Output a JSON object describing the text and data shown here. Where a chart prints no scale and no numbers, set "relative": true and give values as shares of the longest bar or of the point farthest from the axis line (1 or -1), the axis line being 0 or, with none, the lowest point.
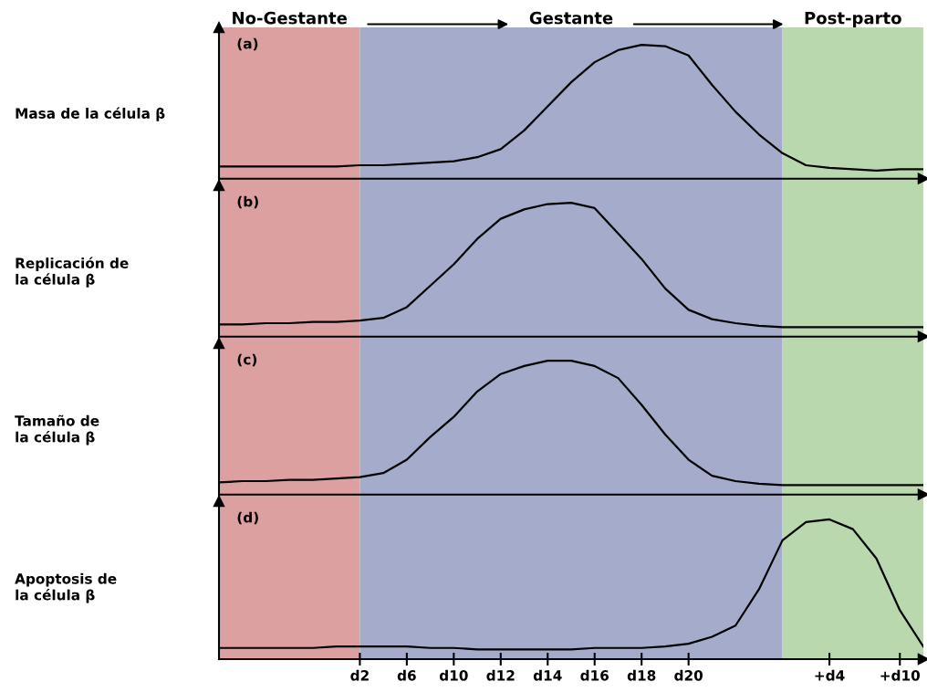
{
  "chart_data": [
    {
      "type": "line",
      "title": "(a)",
      "ylabel": "Masa de la célula β",
      "relative": true,
      "tick_labels": false,
      "grid": false,
      "categories": [
        null,
        null,
        null,
        null,
        null,
        null,
        null,
        null,
        null,
        null,
        null,
        null,
        null,
        null,
        null,
        null,
        null,
        null,
        null,
        null,
        null,
        null,
        null,
        null,
        null,
        null,
        null,
        null,
        null,
        null,
        null
      ],
      "annotations": [
        "No-Gestante",
        "Gestante",
        "Post-parto"
      ],
      "series": [
        {
          "color": "#000000",
          "values": [
            0.09,
            0.09,
            0.09,
            0.09,
            0.09,
            0.09,
            0.1,
            0.1,
            0.11,
            0.12,
            0.13,
            0.16,
            0.22,
            0.36,
            0.54,
            0.72,
            0.87,
            0.96,
            1.0,
            0.99,
            0.92,
            0.7,
            0.5,
            0.33,
            0.19,
            0.1,
            0.08,
            0.07,
            0.06,
            0.07,
            0.07
          ]
        }
      ]
    },
    {
      "type": "line",
      "title": "(b)",
      "ylabel": "Replicación de\nla célula β",
      "relative": true,
      "tick_labels": false,
      "grid": false,
      "categories": [
        null,
        null,
        null,
        null,
        null,
        null,
        null,
        null,
        null,
        null,
        null,
        null,
        null,
        null,
        null,
        null,
        null,
        null,
        null,
        null,
        null,
        null,
        null,
        null,
        null,
        null,
        null,
        null,
        null,
        null,
        null
      ],
      "series": [
        {
          "color": "#000000",
          "values": [
            0.09,
            0.09,
            0.1,
            0.1,
            0.11,
            0.11,
            0.12,
            0.14,
            0.22,
            0.38,
            0.54,
            0.73,
            0.88,
            0.95,
            0.99,
            1.0,
            0.96,
            0.77,
            0.58,
            0.36,
            0.2,
            0.13,
            0.1,
            0.08,
            0.07,
            0.07,
            0.07,
            0.07,
            0.07,
            0.07,
            0.07
          ]
        }
      ]
    },
    {
      "type": "line",
      "title": "(c)",
      "ylabel": "Tamaño de\nla célula β",
      "relative": true,
      "tick_labels": false,
      "grid": false,
      "categories": [
        null,
        null,
        null,
        null,
        null,
        null,
        null,
        null,
        null,
        null,
        null,
        null,
        null,
        null,
        null,
        null,
        null,
        null,
        null,
        null,
        null,
        null,
        null,
        null,
        null,
        null,
        null,
        null,
        null,
        null,
        null
      ],
      "series": [
        {
          "color": "#000000",
          "values": [
            0.09,
            0.1,
            0.1,
            0.11,
            0.11,
            0.12,
            0.13,
            0.16,
            0.26,
            0.43,
            0.58,
            0.77,
            0.9,
            0.96,
            1.0,
            1.0,
            0.96,
            0.87,
            0.67,
            0.45,
            0.26,
            0.14,
            0.1,
            0.08,
            0.07,
            0.07,
            0.07,
            0.07,
            0.07,
            0.07,
            0.07
          ]
        }
      ]
    },
    {
      "type": "line",
      "title": "(d)",
      "ylabel": "Apoptosis de\nla célula β",
      "relative": true,
      "tick_labels": "x",
      "grid": false,
      "categories": [
        null,
        null,
        null,
        null,
        null,
        null,
        "d2",
        null,
        "d6",
        null,
        "d10",
        null,
        "d12",
        null,
        "d14",
        null,
        "d16",
        null,
        "d18",
        null,
        "d20",
        null,
        null,
        null,
        null,
        null,
        "+d4",
        null,
        null,
        "+d10",
        null
      ],
      "series": [
        {
          "color": "#000000",
          "values": [
            0.08,
            0.08,
            0.08,
            0.08,
            0.08,
            0.09,
            0.09,
            0.09,
            0.09,
            0.08,
            0.08,
            0.07,
            0.07,
            0.07,
            0.07,
            0.07,
            0.08,
            0.08,
            0.08,
            0.09,
            0.11,
            0.16,
            0.24,
            0.5,
            0.85,
            0.98,
            1.0,
            0.93,
            0.72,
            0.35,
            0.09
          ]
        }
      ]
    }
  ]
}
